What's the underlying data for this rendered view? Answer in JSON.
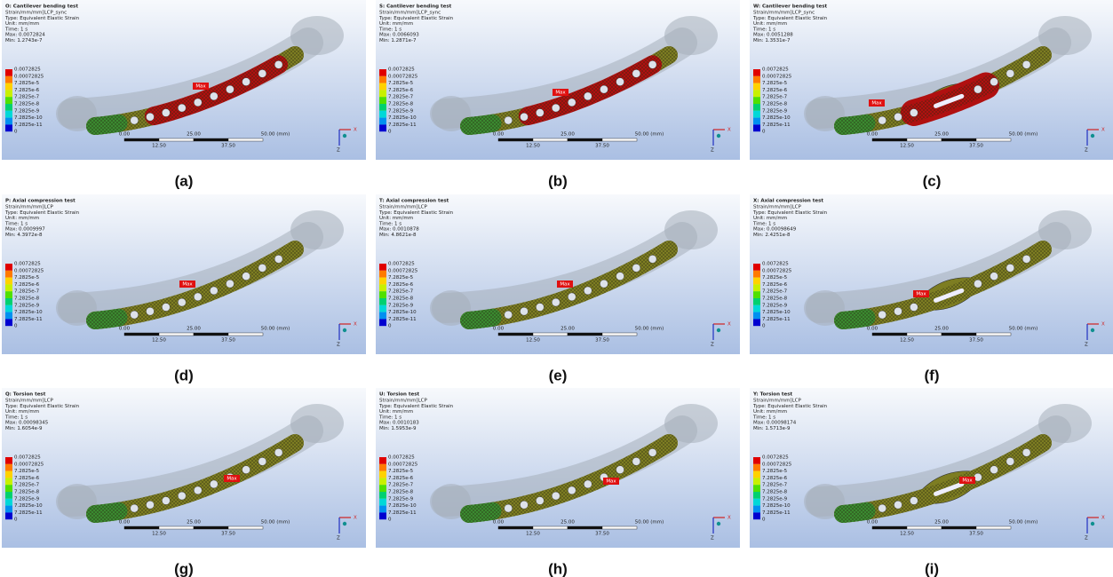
{
  "panels": [
    {
      "caption": "(a)",
      "title": "O: Cantilever bending test",
      "result": "Strain/mm/mm]LCP_sync",
      "kind": "Type: Equivalent Elastic Strain",
      "unit": "Unit: mm/mm",
      "time": "Time: 1 s",
      "max": "Max: 0.0072824",
      "min": "Min: 1.2743e-7"
    },
    {
      "caption": "(b)",
      "title": "S: Cantilever bending test",
      "result": "Strain/mm/mm]LCP_sync",
      "kind": "Type: Equivalent Elastic Strain",
      "unit": "Unit: mm/mm",
      "time": "Time: 1 s",
      "max": "Max: 0.0066093",
      "min": "Min: 1.2871e-7"
    },
    {
      "caption": "(c)",
      "title": "W: Cantilever bending test",
      "result": "Strain/mm/mm]LCP_sync",
      "kind": "Type: Equivalent Elastic Strain",
      "unit": "Unit: mm/mm",
      "time": "Time: 1 s",
      "max": "Max: 0.0051288",
      "min": "Min: 1.3531e-7"
    },
    {
      "caption": "(d)",
      "title": "P: Axial compression test",
      "result": "Strain/mm/mm]LCP",
      "kind": "Type: Equivalent Elastic Strain",
      "unit": "Unit: mm/mm",
      "time": "Time: 1 s",
      "max": "Max: 0.0009997",
      "min": "Min: 4.3972e-8"
    },
    {
      "caption": "(e)",
      "title": "T: Axial compression test",
      "result": "Strain/mm/mm]LCP",
      "kind": "Type: Equivalent Elastic Strain",
      "unit": "Unit: mm/mm",
      "time": "Time: 1 s",
      "max": "Max: 0.0010878",
      "min": "Min: 4.8621e-8"
    },
    {
      "caption": "(f)",
      "title": "X: Axial compression test",
      "result": "Strain/mm/mm]LCP",
      "kind": "Type: Equivalent Elastic Strain",
      "unit": "Unit: mm/mm",
      "time": "Time: 1 s",
      "max": "Max: 0.00098649",
      "min": "Min: 2.4251e-8"
    },
    {
      "caption": "(g)",
      "title": "Q: Torsion test",
      "result": "Strain/mm/mm]LCP",
      "kind": "Type: Equivalent Elastic Strain",
      "unit": "Unit: mm/mm",
      "time": "Time: 1 s",
      "max": "Max: 0.00098345",
      "min": "Min: 1.6054e-9"
    },
    {
      "caption": "(h)",
      "title": "U: Torsion test",
      "result": "Strain/mm/mm]LCP",
      "kind": "Type: Equivalent Elastic Strain",
      "unit": "Unit: mm/mm",
      "time": "Time: 1 s",
      "max": "Max: 0.0010183",
      "min": "Min: 1.5953e-9"
    },
    {
      "caption": "(i)",
      "title": "Y: Torsion test",
      "result": "Strain/mm/mm]LCP",
      "kind": "Type: Equivalent Elastic Strain",
      "unit": "Unit: mm/mm",
      "time": "Time: 1 s",
      "max": "Max: 0.00098174",
      "min": "Min: 1.5713e-9"
    }
  ],
  "legend_labels": [
    "0.0072825",
    "0.00072825",
    "7.2825e-5",
    "7.2825e-6",
    "7.2825e-7",
    "7.2825e-8",
    "7.2825e-9",
    "7.2825e-10",
    "7.2825e-11",
    "0"
  ],
  "scale_top": [
    "0.00",
    "25.00",
    "50.00 (mm)"
  ],
  "scale_bottom": [
    "12.50",
    "37.50"
  ],
  "max_tag": "Max",
  "axes": [
    "X",
    "Z"
  ]
}
